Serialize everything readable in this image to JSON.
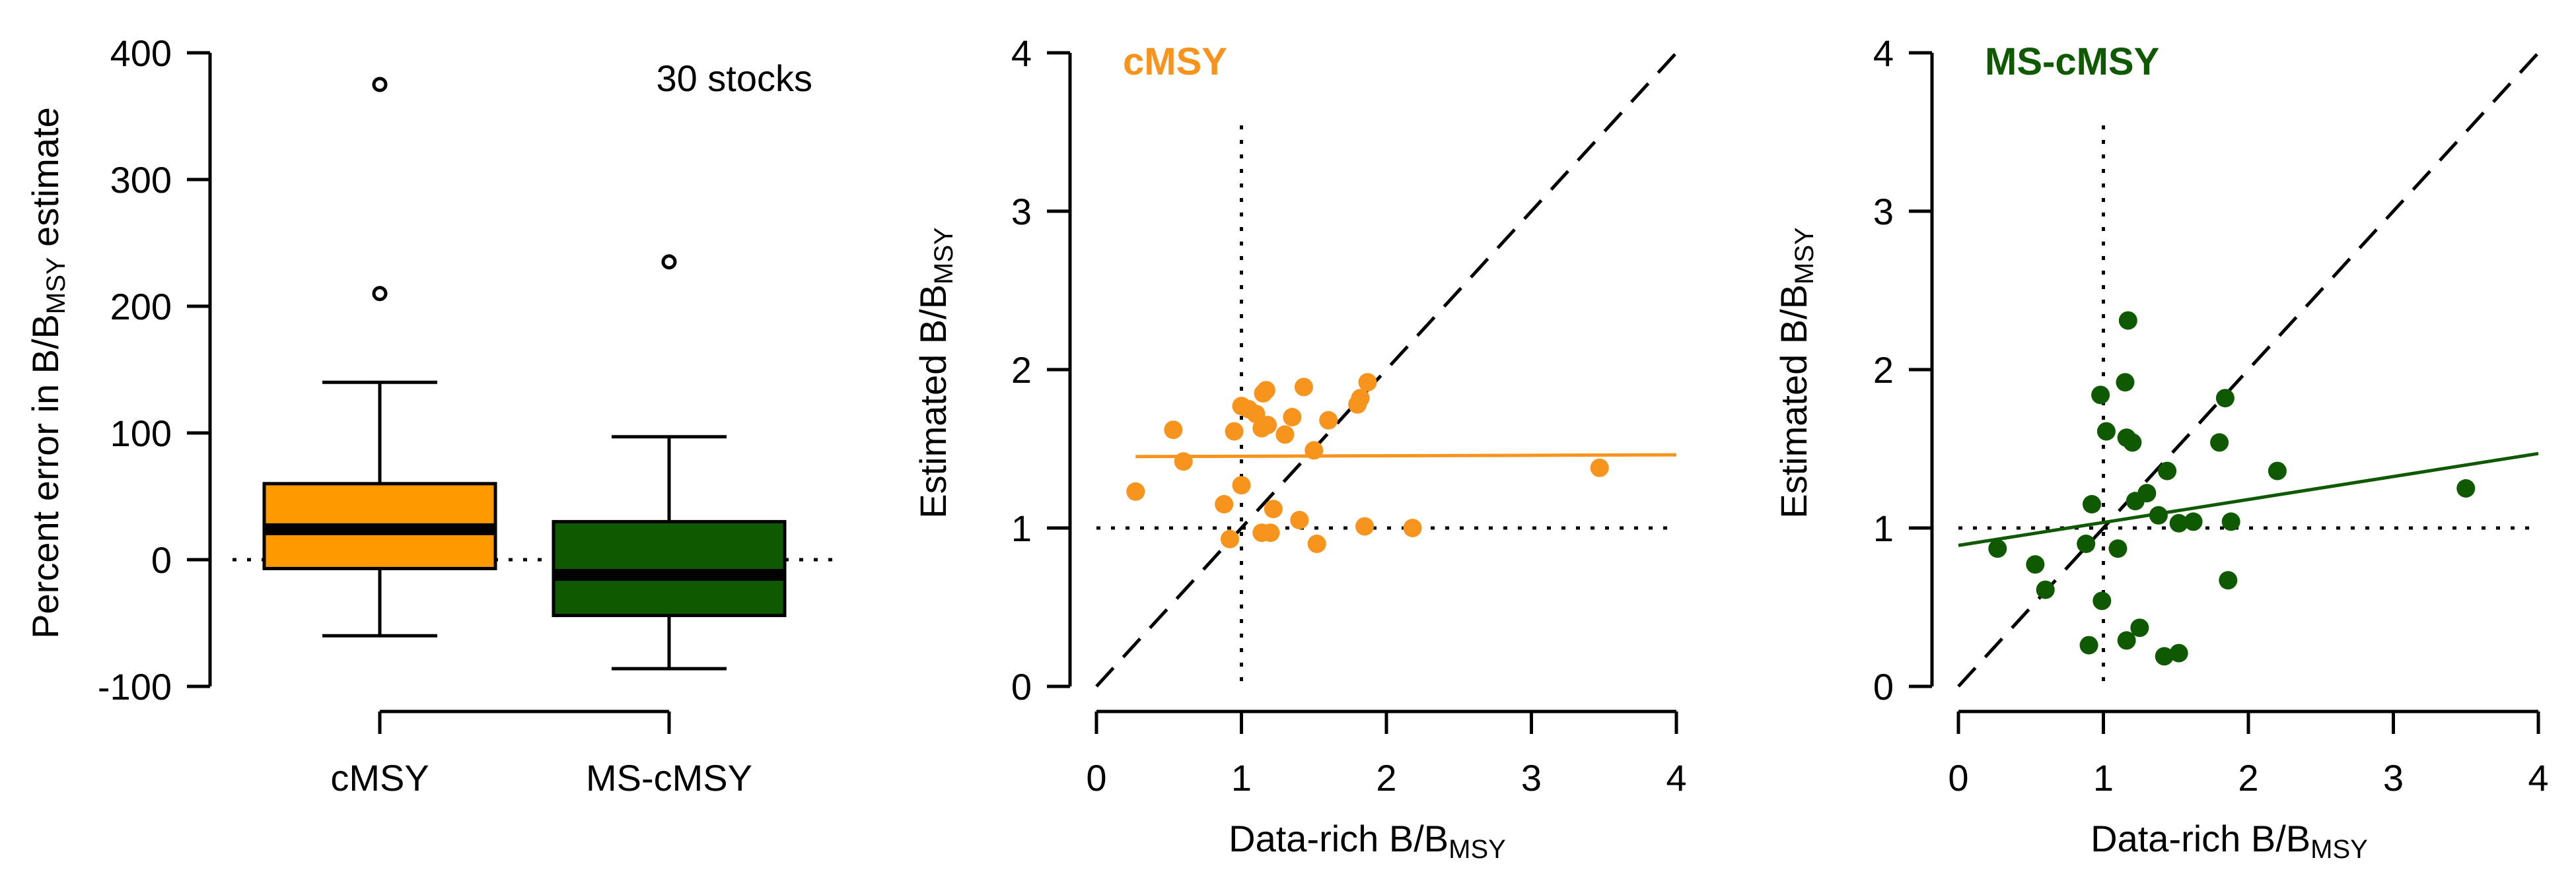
{
  "chart_data": [
    {
      "type": "box",
      "ylabel_prefix": "Percent error in B/B",
      "ylabel_sub": "MSY",
      "ylabel_suffix": " estimate",
      "yticks": [
        -100,
        0,
        100,
        200,
        300,
        400
      ],
      "ylim": [
        -100,
        400
      ],
      "annotation": "30 stocks",
      "reference_line": 0,
      "categories": [
        "cMSY",
        "MS-cMSY"
      ],
      "boxes": [
        {
          "name": "cMSY",
          "color": "#FF9900",
          "q1": -7,
          "median": 24,
          "q3": 60,
          "whisker_low": -60,
          "whisker_high": 140,
          "outliers": [
            210,
            375
          ]
        },
        {
          "name": "MS-cMSY",
          "color": "#0F5A00",
          "q1": -44,
          "median": -12,
          "q3": 30,
          "whisker_low": -86,
          "whisker_high": 97,
          "outliers": [
            235
          ]
        }
      ]
    },
    {
      "type": "scatter",
      "title": "cMSY",
      "color": "#F7941D",
      "xlabel_prefix": "Data-rich B/B",
      "xlabel_sub": "MSY",
      "ylabel_prefix": "Estimated B/B",
      "ylabel_sub": "MSY",
      "xlim": [
        0,
        4
      ],
      "ylim": [
        0,
        4
      ],
      "xticks": [
        0,
        1,
        2,
        3,
        4
      ],
      "yticks": [
        0,
        1,
        2,
        3,
        4
      ],
      "reference_x": 1,
      "reference_y": 1,
      "one_to_one": true,
      "fit_line": {
        "intercept": 1.45,
        "slope": 0.003
      },
      "points": [
        [
          0.27,
          1.23
        ],
        [
          0.53,
          1.62
        ],
        [
          0.6,
          1.42
        ],
        [
          0.88,
          1.15
        ],
        [
          0.92,
          0.93
        ],
        [
          0.95,
          1.61
        ],
        [
          1.0,
          1.77
        ],
        [
          1.0,
          1.27
        ],
        [
          1.05,
          1.75
        ],
        [
          1.1,
          1.72
        ],
        [
          1.14,
          1.63
        ],
        [
          1.14,
          0.97
        ],
        [
          1.15,
          1.85
        ],
        [
          1.17,
          1.87
        ],
        [
          1.18,
          1.65
        ],
        [
          1.2,
          0.97
        ],
        [
          1.22,
          1.12
        ],
        [
          1.3,
          1.59
        ],
        [
          1.35,
          1.7
        ],
        [
          1.4,
          1.05
        ],
        [
          1.43,
          1.89
        ],
        [
          1.5,
          1.49
        ],
        [
          1.52,
          0.9
        ],
        [
          1.6,
          1.68
        ],
        [
          1.8,
          1.78
        ],
        [
          1.82,
          1.82
        ],
        [
          1.85,
          1.01
        ],
        [
          1.87,
          1.92
        ],
        [
          2.18,
          1.0
        ],
        [
          3.47,
          1.38
        ]
      ]
    },
    {
      "type": "scatter",
      "title": "MS-cMSY",
      "color": "#0F5A00",
      "xlabel_prefix": "Data-rich B/B",
      "xlabel_sub": "MSY",
      "ylabel_prefix": "Estimated B/B",
      "ylabel_sub": "MSY",
      "xlim": [
        0,
        4
      ],
      "ylim": [
        0,
        4
      ],
      "xticks": [
        0,
        1,
        2,
        3,
        4
      ],
      "yticks": [
        0,
        1,
        2,
        3,
        4
      ],
      "reference_x": 1,
      "reference_y": 1,
      "one_to_one": true,
      "fit_line": {
        "intercept": 0.89,
        "slope": 0.145
      },
      "points": [
        [
          0.27,
          0.87
        ],
        [
          0.53,
          0.77
        ],
        [
          0.6,
          0.61
        ],
        [
          0.88,
          0.9
        ],
        [
          0.9,
          0.26
        ],
        [
          0.92,
          1.15
        ],
        [
          0.98,
          1.84
        ],
        [
          0.99,
          0.54
        ],
        [
          1.02,
          1.61
        ],
        [
          1.1,
          0.87
        ],
        [
          1.15,
          1.92
        ],
        [
          1.16,
          1.57
        ],
        [
          1.16,
          0.29
        ],
        [
          1.17,
          2.31
        ],
        [
          1.2,
          1.54
        ],
        [
          1.22,
          1.17
        ],
        [
          1.25,
          0.37
        ],
        [
          1.3,
          1.22
        ],
        [
          1.38,
          1.08
        ],
        [
          1.42,
          0.19
        ],
        [
          1.44,
          1.36
        ],
        [
          1.52,
          0.21
        ],
        [
          1.52,
          1.03
        ],
        [
          1.62,
          1.04
        ],
        [
          1.8,
          1.54
        ],
        [
          1.84,
          1.82
        ],
        [
          1.86,
          0.67
        ],
        [
          1.88,
          1.04
        ],
        [
          2.2,
          1.36
        ],
        [
          3.5,
          1.25
        ]
      ]
    }
  ]
}
